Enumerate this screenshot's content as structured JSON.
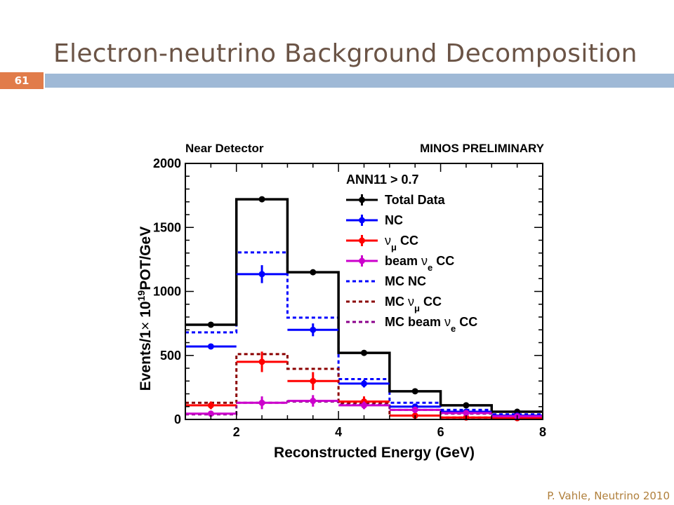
{
  "slide": {
    "title": "Electron-neutrino Background Decomposition",
    "number": "61",
    "footer": "P. Vahle, Neutrino 2010"
  },
  "colors": {
    "title_text": "#6b5446",
    "title_bar": "#9fb9d6",
    "number_badge": "#e17c4a",
    "footer_text": "#b07f3b"
  },
  "chart_data": {
    "type": "histogram",
    "header_left": "Near Detector",
    "header_right": "MINOS PRELIMINARY",
    "cut_label": "ANN11 > 0.7",
    "xlabel": "Reconstructed Energy (GeV)",
    "ylabel_prefix": "Events/1",
    "ylabel_suffix": "POT/GeV",
    "xlim": [
      1,
      8
    ],
    "ylim": [
      0,
      2000
    ],
    "xticks": [
      "2",
      "4",
      "6",
      "8"
    ],
    "yticks": [
      "0",
      "500",
      "1000",
      "1500",
      "2000"
    ],
    "bin_edges": [
      1,
      2,
      3,
      4,
      5,
      6,
      7,
      8
    ],
    "data_series": [
      {
        "name": "Total Data",
        "color": "#000000",
        "values": [
          740,
          1720,
          1150,
          520,
          220,
          110,
          60
        ],
        "errors": [
          10,
          15,
          12,
          10,
          8,
          6,
          5
        ]
      },
      {
        "name": "NC",
        "color": "#0000ff",
        "values": [
          570,
          1135,
          700,
          280,
          100,
          60,
          30
        ],
        "errors": [
          12,
          70,
          50,
          30,
          20,
          12,
          8
        ]
      },
      {
        "name": "CC",
        "color": "#ff0000",
        "values": [
          110,
          450,
          300,
          140,
          30,
          15,
          10
        ],
        "errors": [
          30,
          80,
          70,
          40,
          15,
          10,
          6
        ]
      },
      {
        "name": "beam CC",
        "color": "#cc00cc",
        "values": [
          45,
          130,
          145,
          110,
          75,
          50,
          25
        ],
        "errors": [
          10,
          50,
          45,
          30,
          25,
          15,
          10
        ]
      }
    ],
    "mc_series": [
      {
        "name": "MC NC",
        "color": "#0000ff",
        "values": [
          680,
          1305,
          795,
          315,
          130,
          75,
          40
        ]
      },
      {
        "name": "MC CC",
        "color": "#8b0000",
        "values": [
          130,
          510,
          395,
          130,
          30,
          15,
          10
        ]
      },
      {
        "name": "MC beam CC",
        "color": "#8b008b",
        "values": [
          40,
          130,
          140,
          115,
          75,
          45,
          20
        ]
      }
    ],
    "legend": {
      "placement": "top-right",
      "entries": [
        {
          "label": "Total Data",
          "style": "marker",
          "color": "#000000"
        },
        {
          "label": "NC",
          "style": "marker",
          "color": "#0000ff"
        },
        {
          "label": "CC",
          "symbol": "νμ",
          "style": "marker",
          "color": "#ff0000"
        },
        {
          "label": "beam CC",
          "symbol": "νe",
          "style": "marker",
          "color": "#cc00cc"
        },
        {
          "label": "MC NC",
          "style": "dashed",
          "color": "#0000ff"
        },
        {
          "label": "MC CC",
          "symbol": "νμ",
          "style": "dashed",
          "color": "#8b0000"
        },
        {
          "label": "MC beam CC",
          "symbol": "νe",
          "style": "dashed",
          "color": "#8b008b"
        }
      ]
    }
  }
}
